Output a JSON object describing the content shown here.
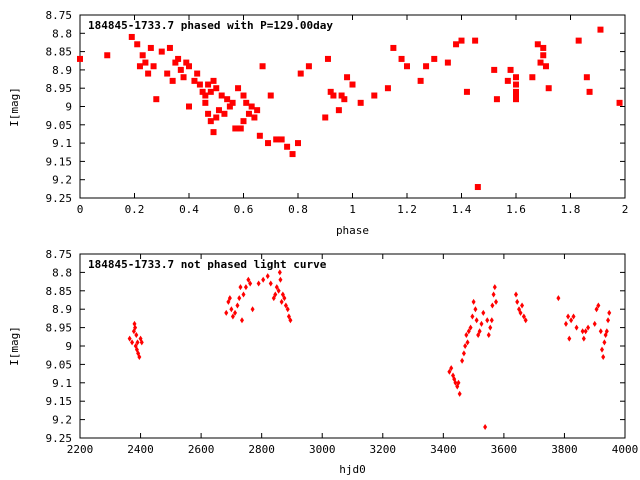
{
  "colors": {
    "points": "#ff0000",
    "frame": "#000000",
    "background": "#ffffff"
  },
  "chart_data": [
    {
      "type": "scatter",
      "title": "184845-1733.7 phased with P=129.00day",
      "xlabel": "phase",
      "ylabel": "I[mag]",
      "xlim": [
        0,
        2
      ],
      "ylim": [
        8.75,
        9.25
      ],
      "y_inverted": true,
      "grid": false,
      "x_ticks": [
        "0",
        "0.2",
        "0.4",
        "0.6",
        "0.8",
        "1",
        "1.2",
        "1.4",
        "1.6",
        "1.8",
        "2"
      ],
      "y_ticks": [
        "8.75",
        "8.8",
        "8.85",
        "8.9",
        "8.95",
        "9",
        "9.05",
        "9.1",
        "9.15",
        "9.2",
        "9.25"
      ],
      "marker": "filled-square",
      "points": [
        [
          0.0,
          8.87
        ],
        [
          0.1,
          8.86
        ],
        [
          0.19,
          8.81
        ],
        [
          0.21,
          8.83
        ],
        [
          0.22,
          8.89
        ],
        [
          0.23,
          8.86
        ],
        [
          0.24,
          8.88
        ],
        [
          0.25,
          8.91
        ],
        [
          0.26,
          8.84
        ],
        [
          0.27,
          8.89
        ],
        [
          0.28,
          8.98
        ],
        [
          0.3,
          8.85
        ],
        [
          0.32,
          8.91
        ],
        [
          0.33,
          8.84
        ],
        [
          0.34,
          8.93
        ],
        [
          0.35,
          8.88
        ],
        [
          0.36,
          8.87
        ],
        [
          0.37,
          8.9
        ],
        [
          0.38,
          8.92
        ],
        [
          0.39,
          8.88
        ],
        [
          0.4,
          8.89
        ],
        [
          0.4,
          9.0
        ],
        [
          0.42,
          8.93
        ],
        [
          0.43,
          8.91
        ],
        [
          0.44,
          8.94
        ],
        [
          0.45,
          8.96
        ],
        [
          0.46,
          8.97
        ],
        [
          0.46,
          8.99
        ],
        [
          0.47,
          9.02
        ],
        [
          0.47,
          8.94
        ],
        [
          0.48,
          9.04
        ],
        [
          0.48,
          8.96
        ],
        [
          0.49,
          9.07
        ],
        [
          0.49,
          8.93
        ],
        [
          0.5,
          9.03
        ],
        [
          0.5,
          8.95
        ],
        [
          0.51,
          9.01
        ],
        [
          0.52,
          8.97
        ],
        [
          0.53,
          9.02
        ],
        [
          0.54,
          8.98
        ],
        [
          0.55,
          9.0
        ],
        [
          0.56,
          8.99
        ],
        [
          0.57,
          9.06
        ],
        [
          0.58,
          8.95
        ],
        [
          0.59,
          9.06
        ],
        [
          0.6,
          8.97
        ],
        [
          0.6,
          9.04
        ],
        [
          0.61,
          8.99
        ],
        [
          0.62,
          9.02
        ],
        [
          0.63,
          9.0
        ],
        [
          0.64,
          9.03
        ],
        [
          0.65,
          9.01
        ],
        [
          0.66,
          9.08
        ],
        [
          0.67,
          8.89
        ],
        [
          0.69,
          9.1
        ],
        [
          0.7,
          8.97
        ],
        [
          0.72,
          9.09
        ],
        [
          0.74,
          9.09
        ],
        [
          0.76,
          9.11
        ],
        [
          0.78,
          9.13
        ],
        [
          0.8,
          9.1
        ],
        [
          0.81,
          8.91
        ],
        [
          0.84,
          8.89
        ],
        [
          0.9,
          9.03
        ],
        [
          0.91,
          8.87
        ],
        [
          0.92,
          8.96
        ],
        [
          0.93,
          8.97
        ],
        [
          0.95,
          9.01
        ],
        [
          0.96,
          8.97
        ],
        [
          0.97,
          8.98
        ],
        [
          0.98,
          8.92
        ],
        [
          1.0,
          8.94
        ],
        [
          1.03,
          8.99
        ],
        [
          1.08,
          8.97
        ],
        [
          1.13,
          8.95
        ],
        [
          1.15,
          8.84
        ],
        [
          1.18,
          8.87
        ],
        [
          1.2,
          8.89
        ],
        [
          1.25,
          8.93
        ],
        [
          1.27,
          8.89
        ],
        [
          1.3,
          8.87
        ],
        [
          1.35,
          8.88
        ],
        [
          1.38,
          8.83
        ],
        [
          1.4,
          8.82
        ],
        [
          1.42,
          8.96
        ],
        [
          1.45,
          8.82
        ],
        [
          1.46,
          9.22
        ],
        [
          1.52,
          8.9
        ],
        [
          1.53,
          8.98
        ],
        [
          1.57,
          8.93
        ],
        [
          1.58,
          8.9
        ],
        [
          1.6,
          8.92
        ],
        [
          1.6,
          8.94
        ],
        [
          1.6,
          8.96
        ],
        [
          1.6,
          8.97
        ],
        [
          1.6,
          8.98
        ],
        [
          1.66,
          8.92
        ],
        [
          1.68,
          8.83
        ],
        [
          1.69,
          8.88
        ],
        [
          1.7,
          8.84
        ],
        [
          1.7,
          8.86
        ],
        [
          1.71,
          8.89
        ],
        [
          1.72,
          8.95
        ],
        [
          1.83,
          8.82
        ],
        [
          1.86,
          8.92
        ],
        [
          1.87,
          8.96
        ],
        [
          1.91,
          8.79
        ],
        [
          1.98,
          8.99
        ]
      ]
    },
    {
      "type": "scatter",
      "title": "184845-1733.7 not phased light curve",
      "xlabel": "hjd0",
      "ylabel": "I[mag]",
      "xlim": [
        2200,
        4000
      ],
      "ylim": [
        8.75,
        9.25
      ],
      "y_inverted": true,
      "grid": false,
      "x_ticks": [
        "2200",
        "2400",
        "2600",
        "2800",
        "3000",
        "3200",
        "3400",
        "3600",
        "3800",
        "4000"
      ],
      "y_ticks": [
        "8.75",
        "8.8",
        "8.85",
        "8.9",
        "8.95",
        "9",
        "9.05",
        "9.1",
        "9.15",
        "9.2",
        "9.25"
      ],
      "marker": "small-diamond",
      "points": [
        [
          2364,
          8.98
        ],
        [
          2372,
          8.99
        ],
        [
          2378,
          8.96
        ],
        [
          2380,
          8.94
        ],
        [
          2382,
          8.95
        ],
        [
          2384,
          9.0
        ],
        [
          2386,
          8.97
        ],
        [
          2388,
          9.01
        ],
        [
          2390,
          8.99
        ],
        [
          2392,
          9.02
        ],
        [
          2396,
          9.03
        ],
        [
          2400,
          8.98
        ],
        [
          2404,
          8.99
        ],
        [
          2683,
          8.91
        ],
        [
          2690,
          8.88
        ],
        [
          2695,
          8.87
        ],
        [
          2700,
          8.9
        ],
        [
          2705,
          8.92
        ],
        [
          2712,
          8.91
        ],
        [
          2720,
          8.89
        ],
        [
          2726,
          8.87
        ],
        [
          2730,
          8.84
        ],
        [
          2735,
          8.93
        ],
        [
          2740,
          8.86
        ],
        [
          2748,
          8.84
        ],
        [
          2756,
          8.82
        ],
        [
          2762,
          8.83
        ],
        [
          2770,
          8.9
        ],
        [
          2790,
          8.83
        ],
        [
          2805,
          8.82
        ],
        [
          2820,
          8.81
        ],
        [
          2830,
          8.83
        ],
        [
          2840,
          8.87
        ],
        [
          2845,
          8.86
        ],
        [
          2850,
          8.84
        ],
        [
          2856,
          8.85
        ],
        [
          2860,
          8.8
        ],
        [
          2862,
          8.82
        ],
        [
          2866,
          8.88
        ],
        [
          2870,
          8.86
        ],
        [
          2875,
          8.87
        ],
        [
          2880,
          8.89
        ],
        [
          2886,
          8.9
        ],
        [
          2890,
          8.92
        ],
        [
          2895,
          8.93
        ],
        [
          3420,
          9.07
        ],
        [
          3426,
          9.06
        ],
        [
          3432,
          9.08
        ],
        [
          3436,
          9.09
        ],
        [
          3440,
          9.1
        ],
        [
          3446,
          9.11
        ],
        [
          3450,
          9.1
        ],
        [
          3454,
          9.13
        ],
        [
          3462,
          9.04
        ],
        [
          3468,
          9.02
        ],
        [
          3472,
          9.0
        ],
        [
          3476,
          8.97
        ],
        [
          3480,
          8.99
        ],
        [
          3484,
          8.96
        ],
        [
          3490,
          8.95
        ],
        [
          3496,
          8.92
        ],
        [
          3500,
          8.88
        ],
        [
          3506,
          8.9
        ],
        [
          3510,
          8.93
        ],
        [
          3515,
          8.97
        ],
        [
          3520,
          8.96
        ],
        [
          3526,
          8.94
        ],
        [
          3532,
          8.91
        ],
        [
          3538,
          9.22
        ],
        [
          3545,
          8.93
        ],
        [
          3550,
          8.97
        ],
        [
          3555,
          8.95
        ],
        [
          3560,
          8.93
        ],
        [
          3562,
          8.89
        ],
        [
          3566,
          8.86
        ],
        [
          3570,
          8.84
        ],
        [
          3574,
          8.88
        ],
        [
          3640,
          8.86
        ],
        [
          3644,
          8.88
        ],
        [
          3650,
          8.9
        ],
        [
          3655,
          8.91
        ],
        [
          3660,
          8.89
        ],
        [
          3666,
          8.92
        ],
        [
          3672,
          8.93
        ],
        [
          3780,
          8.87
        ],
        [
          3805,
          8.94
        ],
        [
          3812,
          8.92
        ],
        [
          3816,
          8.98
        ],
        [
          3822,
          8.93
        ],
        [
          3830,
          8.92
        ],
        [
          3840,
          8.95
        ],
        [
          3860,
          8.96
        ],
        [
          3864,
          8.98
        ],
        [
          3870,
          8.96
        ],
        [
          3878,
          8.95
        ],
        [
          3900,
          8.94
        ],
        [
          3906,
          8.9
        ],
        [
          3912,
          8.89
        ],
        [
          3920,
          8.96
        ],
        [
          3924,
          9.01
        ],
        [
          3928,
          9.03
        ],
        [
          3932,
          8.99
        ],
        [
          3936,
          8.97
        ],
        [
          3940,
          8.96
        ],
        [
          3944,
          8.93
        ],
        [
          3948,
          8.91
        ]
      ]
    }
  ]
}
